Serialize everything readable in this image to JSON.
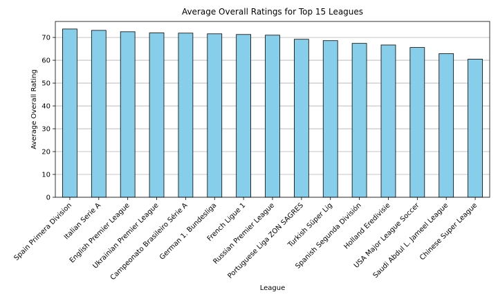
{
  "chart_data": {
    "type": "bar",
    "title": "Average Overall Ratings for Top 15 Leagues",
    "xlabel": "League",
    "ylabel": "Average Overall Rating",
    "categories": [
      "Spain Primera Division",
      "Italian Serie A",
      "English Premier League",
      "Ukrainian Premier League",
      "Campeonato Brasileiro Série A",
      "German 1. Bundesliga",
      "French Ligue 1",
      "Russian Premier League",
      "Portuguese Liga ZON SAGRES",
      "Turkish Süper Lig",
      "Spanish Segunda División",
      "Holland Eredivisie",
      "USA Major League Soccer",
      "Saudi Abdul L. Jameel League",
      "Chinese Super League"
    ],
    "values": [
      73.7,
      73.1,
      72.5,
      72.0,
      71.9,
      71.6,
      71.3,
      71.0,
      69.2,
      68.6,
      67.4,
      66.7,
      65.6,
      62.9,
      60.5
    ],
    "ylim": [
      0,
      77
    ],
    "yticks": [
      0,
      10,
      20,
      30,
      40,
      50,
      60,
      70
    ],
    "grid": "y",
    "bar_color": "#87ceeb",
    "edge_color": "#000000"
  }
}
